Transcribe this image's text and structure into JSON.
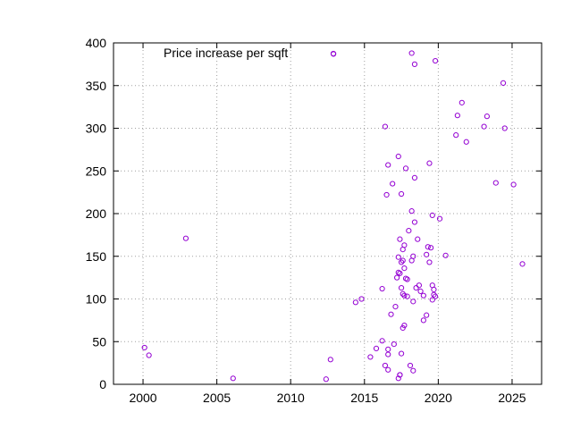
{
  "chart_data": {
    "type": "scatter",
    "title": "",
    "xlabel": "",
    "ylabel": "",
    "xlim": [
      1998,
      2027
    ],
    "ylim": [
      0,
      400
    ],
    "x_ticks": [
      2000,
      2005,
      2010,
      2015,
      2020,
      2025
    ],
    "y_ticks": [
      0,
      50,
      100,
      150,
      200,
      250,
      300,
      350,
      400
    ],
    "x_tick_labels": [
      "2000",
      "2005",
      "2010",
      "2015",
      "2020",
      "2025"
    ],
    "y_tick_labels": [
      "0",
      "50",
      "100",
      "150",
      "200",
      "250",
      "300",
      "350",
      "400"
    ],
    "grid": true,
    "legend_position": "top-left",
    "marker": "circle",
    "series": [
      {
        "name": "Price increase per sqft",
        "color": "#9400d3",
        "points": [
          [
            2000.1,
            43
          ],
          [
            2000.4,
            34
          ],
          [
            2002.9,
            171
          ],
          [
            2006.1,
            7
          ],
          [
            2012.4,
            6
          ],
          [
            2012.7,
            29
          ],
          [
            2014.4,
            96
          ],
          [
            2014.8,
            100
          ],
          [
            2015.4,
            32
          ],
          [
            2015.8,
            42
          ],
          [
            2016.2,
            51
          ],
          [
            2016.2,
            112
          ],
          [
            2016.4,
            22
          ],
          [
            2016.6,
            17
          ],
          [
            2016.6,
            35
          ],
          [
            2016.6,
            41
          ],
          [
            2016.8,
            82
          ],
          [
            2017.0,
            47
          ],
          [
            2017.1,
            91
          ],
          [
            2017.3,
            7
          ],
          [
            2017.4,
            11
          ],
          [
            2017.4,
            11
          ],
          [
            2017.5,
            36
          ],
          [
            2017.6,
            66
          ],
          [
            2017.7,
            69
          ],
          [
            2018.1,
            22
          ],
          [
            2018.3,
            16
          ],
          [
            2017.2,
            125
          ],
          [
            2017.3,
            131
          ],
          [
            2017.4,
            130
          ],
          [
            2017.3,
            149
          ],
          [
            2017.5,
            143
          ],
          [
            2017.6,
            145
          ],
          [
            2017.4,
            170
          ],
          [
            2017.6,
            158
          ],
          [
            2017.7,
            163
          ],
          [
            2017.5,
            113
          ],
          [
            2017.6,
            106
          ],
          [
            2017.7,
            104
          ],
          [
            2017.8,
            124
          ],
          [
            2017.9,
            123
          ],
          [
            2017.9,
            103
          ],
          [
            2017.7,
            136
          ],
          [
            2018.2,
            145
          ],
          [
            2018.3,
            150
          ],
          [
            2018.0,
            180
          ],
          [
            2018.4,
            190
          ],
          [
            2018.6,
            170
          ],
          [
            2018.3,
            97
          ],
          [
            2018.5,
            113
          ],
          [
            2018.7,
            116
          ],
          [
            2018.8,
            109
          ],
          [
            2019.0,
            104
          ],
          [
            2019.0,
            75
          ],
          [
            2019.2,
            81
          ],
          [
            2019.2,
            152
          ],
          [
            2019.4,
            143
          ],
          [
            2019.3,
            161
          ],
          [
            2019.5,
            160
          ],
          [
            2019.6,
            116
          ],
          [
            2019.7,
            111
          ],
          [
            2019.6,
            99
          ],
          [
            2019.7,
            105
          ],
          [
            2019.8,
            103
          ],
          [
            2019.6,
            198
          ],
          [
            2020.1,
            194
          ],
          [
            2020.5,
            151
          ],
          [
            2018.2,
            203
          ],
          [
            2016.4,
            302
          ],
          [
            2016.5,
            222
          ],
          [
            2016.6,
            257
          ],
          [
            2016.9,
            235
          ],
          [
            2017.3,
            267
          ],
          [
            2017.5,
            223
          ],
          [
            2017.8,
            253
          ],
          [
            2018.4,
            242
          ],
          [
            2019.4,
            259
          ],
          [
            2012.9,
            387
          ],
          [
            2018.2,
            388
          ],
          [
            2018.4,
            375
          ],
          [
            2019.8,
            379
          ],
          [
            2021.2,
            292
          ],
          [
            2021.3,
            315
          ],
          [
            2021.6,
            330
          ],
          [
            2021.9,
            284
          ],
          [
            2023.1,
            302
          ],
          [
            2023.3,
            314
          ],
          [
            2023.9,
            236
          ],
          [
            2024.4,
            353
          ],
          [
            2024.5,
            300
          ],
          [
            2025.1,
            234
          ],
          [
            2025.7,
            141
          ]
        ]
      }
    ]
  }
}
